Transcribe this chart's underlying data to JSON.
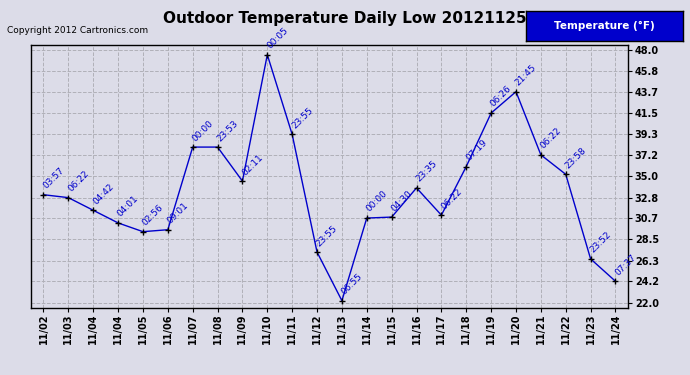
{
  "title": "Outdoor Temperature Daily Low 20121125",
  "copyright": "Copyright 2012 Cartronics.com",
  "legend_label": "Temperature (°F)",
  "x_labels": [
    "11/02",
    "11/03",
    "11/04",
    "11/04",
    "11/05",
    "11/06",
    "11/07",
    "11/08",
    "11/09",
    "11/10",
    "11/11",
    "11/12",
    "11/13",
    "11/14",
    "11/15",
    "11/16",
    "11/17",
    "11/18",
    "11/19",
    "11/20",
    "11/21",
    "11/22",
    "11/23",
    "11/24"
  ],
  "x_positions": [
    0,
    1,
    2,
    3,
    4,
    5,
    6,
    7,
    8,
    9,
    10,
    11,
    12,
    13,
    14,
    15,
    16,
    17,
    18,
    19,
    20,
    21,
    22,
    23
  ],
  "y_values": [
    33.1,
    32.8,
    31.5,
    30.2,
    29.3,
    29.5,
    38.0,
    38.0,
    34.5,
    47.5,
    39.3,
    27.2,
    22.2,
    30.7,
    30.8,
    33.8,
    31.0,
    36.0,
    41.5,
    43.7,
    37.2,
    35.2,
    26.5,
    24.2
  ],
  "point_labels": [
    "03:57",
    "06:22",
    "04:42",
    "04:01",
    "02:56",
    "09:01",
    "00:00",
    "23:53",
    "02:11",
    "00:05",
    "23:55",
    "23:55",
    "06:55",
    "00:00",
    "04:30",
    "23:35",
    "06:22",
    "07:19",
    "06:26",
    "21:45",
    "06:22",
    "23:58",
    "23:52",
    "07:37"
  ],
  "y_ticks": [
    22.0,
    24.2,
    26.3,
    28.5,
    30.7,
    32.8,
    35.0,
    37.2,
    39.3,
    41.5,
    43.7,
    45.8,
    48.0
  ],
  "ylim": [
    21.5,
    48.5
  ],
  "background_color": "#dcdce8",
  "plot_bg_color": "#dcdce8",
  "line_color": "#0000cc",
  "point_color": "#000000",
  "label_color": "#0000cc",
  "title_color": "#000000",
  "copyright_color": "#000000",
  "legend_bg": "#0000cc",
  "legend_fg": "#ffffff",
  "grid_color": "#b0b0b8",
  "grid_style": "--",
  "title_fontsize": 11,
  "copyright_fontsize": 6.5,
  "tick_fontsize": 7,
  "label_fontsize": 6.5
}
